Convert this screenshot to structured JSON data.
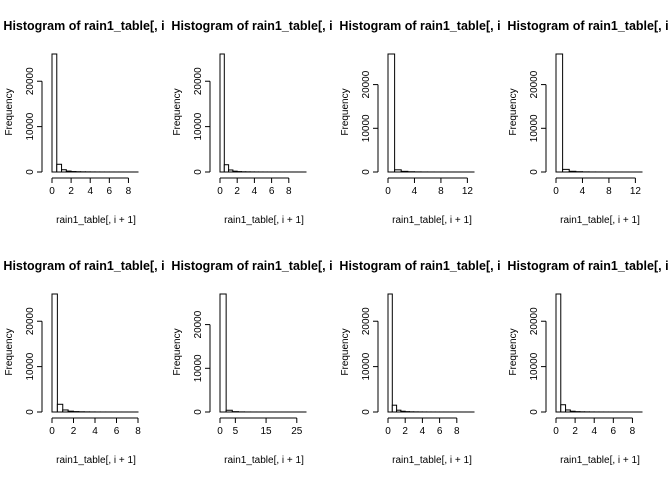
{
  "chart_data": [
    {
      "type": "bar",
      "title": "Histogram of rain1_table[, i",
      "xlabel": "rain1_table[, i + 1]",
      "ylabel": "Frequency",
      "xlim": [
        0,
        9
      ],
      "ylim": [
        0,
        26000
      ],
      "xticks": [
        0,
        2,
        4,
        6,
        8
      ],
      "yticks": [
        0,
        10000,
        20000
      ],
      "bin_width": 0.5,
      "values": [
        26000,
        1700,
        500,
        200,
        100,
        60,
        40,
        30,
        20,
        15,
        10,
        8,
        6,
        5,
        4,
        3,
        2,
        1
      ]
    },
    {
      "type": "bar",
      "title": "Histogram of rain1_table[, i",
      "xlabel": "rain1_table[, i + 1]",
      "ylabel": "Frequency",
      "xlim": [
        0,
        10
      ],
      "ylim": [
        0,
        26000
      ],
      "xticks": [
        0,
        2,
        4,
        6,
        8
      ],
      "yticks": [
        0,
        10000,
        20000
      ],
      "bin_width": 0.5,
      "values": [
        26000,
        1600,
        450,
        180,
        90,
        50,
        35,
        25,
        18,
        12,
        9,
        7,
        5,
        4,
        3,
        3,
        2,
        2,
        1,
        1
      ]
    },
    {
      "type": "bar",
      "title": "Histogram of rain1_table[, i",
      "xlabel": "rain1_table[, i + 1]",
      "ylabel": "Frequency",
      "xlim": [
        0,
        13
      ],
      "ylim": [
        0,
        27000
      ],
      "xticks": [
        0,
        4,
        8,
        12
      ],
      "yticks": [
        0,
        10000,
        20000
      ],
      "bin_width": 1,
      "values": [
        27000,
        500,
        150,
        60,
        30,
        15,
        10,
        6,
        4,
        3,
        2,
        1,
        1
      ]
    },
    {
      "type": "bar",
      "title": "Histogram of rain1_table[, i",
      "xlabel": "rain1_table[, i + 1]",
      "ylabel": "Frequency",
      "xlim": [
        0,
        13
      ],
      "ylim": [
        0,
        27000
      ],
      "xticks": [
        0,
        4,
        8,
        12
      ],
      "yticks": [
        0,
        10000,
        20000
      ],
      "bin_width": 1,
      "values": [
        27000,
        600,
        160,
        70,
        30,
        15,
        10,
        6,
        4,
        3,
        2,
        1,
        1
      ]
    },
    {
      "type": "bar",
      "title": "Histogram of rain1_table[, i",
      "xlabel": "rain1_table[, i + 1]",
      "ylabel": "Frequency",
      "xlim": [
        0,
        8
      ],
      "ylim": [
        0,
        26000
      ],
      "xticks": [
        0,
        2,
        4,
        6,
        8
      ],
      "yticks": [
        0,
        10000,
        20000
      ],
      "bin_width": 0.5,
      "values": [
        26000,
        1700,
        450,
        180,
        90,
        50,
        30,
        20,
        12,
        8,
        6,
        4,
        3,
        2,
        1,
        1
      ]
    },
    {
      "type": "bar",
      "title": "Histogram of rain1_table[, i",
      "xlabel": "rain1_table[, i + 1]",
      "ylabel": "Frequency",
      "xlim": [
        0,
        28
      ],
      "ylim": [
        0,
        27000
      ],
      "xticks": [
        0,
        5,
        15,
        25
      ],
      "yticks": [
        0,
        10000,
        20000
      ],
      "bin_width": 2,
      "values": [
        27000,
        400,
        80,
        30,
        12,
        6,
        4,
        3,
        2,
        1,
        1,
        1,
        1,
        1
      ]
    },
    {
      "type": "bar",
      "title": "Histogram of rain1_table[, i",
      "xlabel": "rain1_table[, i + 1]",
      "ylabel": "Frequency",
      "xlim": [
        0,
        10
      ],
      "ylim": [
        0,
        26000
      ],
      "xticks": [
        0,
        2,
        4,
        6,
        8
      ],
      "yticks": [
        0,
        10000,
        20000
      ],
      "bin_width": 0.5,
      "values": [
        26000,
        1500,
        400,
        170,
        80,
        45,
        30,
        20,
        15,
        10,
        8,
        6,
        5,
        4,
        3,
        2,
        2,
        1,
        1,
        1
      ]
    },
    {
      "type": "bar",
      "title": "Histogram of rain1_table[, i",
      "xlabel": "rain1_table[, i + 1]",
      "ylabel": "Frequency",
      "xlim": [
        0,
        9
      ],
      "ylim": [
        0,
        26000
      ],
      "xticks": [
        0,
        2,
        4,
        6,
        8
      ],
      "yticks": [
        0,
        10000,
        20000
      ],
      "bin_width": 0.5,
      "values": [
        26000,
        1600,
        450,
        170,
        80,
        45,
        30,
        20,
        14,
        10,
        7,
        5,
        4,
        3,
        2,
        1,
        1,
        1
      ]
    }
  ]
}
